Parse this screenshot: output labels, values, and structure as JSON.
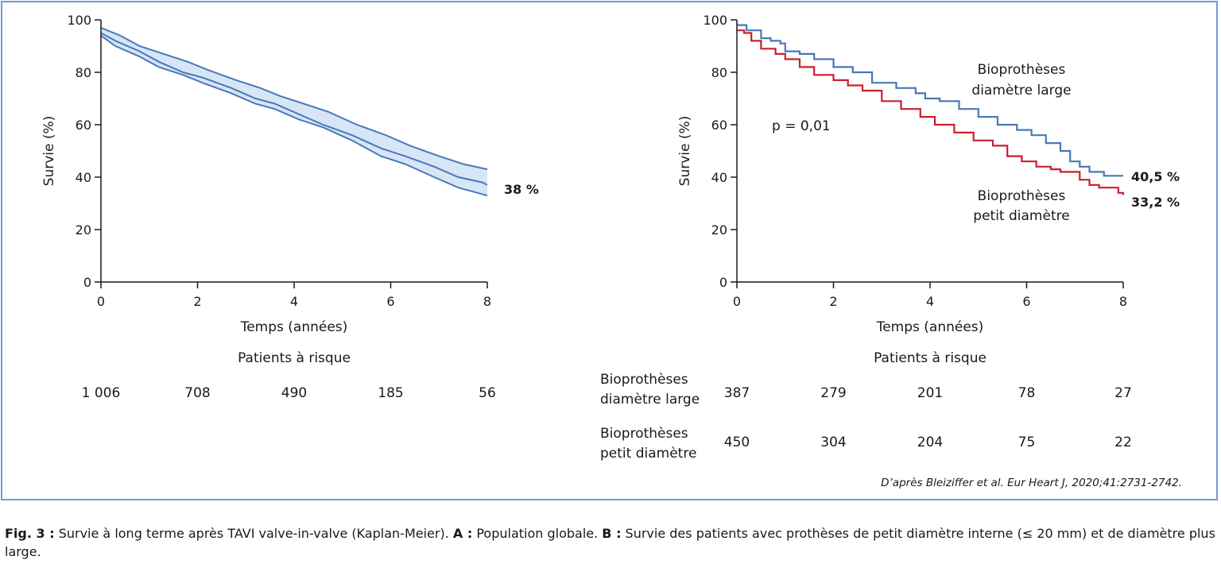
{
  "colors": {
    "frame": "#6f9bd1",
    "blue": "#4a77b6",
    "red": "#c8202e",
    "band_fill": "#d6e6f7"
  },
  "chart_data": [
    {
      "type": "line",
      "panel": "A",
      "title": "",
      "xlabel": "Temps (années)",
      "ylabel": "Survie (%)",
      "xlim": [
        0,
        8
      ],
      "ylim": [
        0,
        100
      ],
      "x_ticks": [
        "0",
        "2",
        "4",
        "6",
        "8"
      ],
      "y_ticks": [
        "0",
        "20",
        "40",
        "60",
        "80",
        "100"
      ],
      "series": [
        {
          "name": "",
          "role": "estimate",
          "x": [
            0,
            0.3,
            0.8,
            1.2,
            1.7,
            2.1,
            2.7,
            3.2,
            3.6,
            4.1,
            4.6,
            5.2,
            5.8,
            6.3,
            6.9,
            7.4,
            7.9,
            8
          ],
          "y": [
            95,
            92,
            88,
            84,
            80,
            78,
            74,
            70,
            68,
            64,
            60,
            56,
            51,
            48,
            44,
            40,
            38,
            37
          ]
        },
        {
          "name": "",
          "role": "upper",
          "x": [
            0,
            0.4,
            0.8,
            1.3,
            1.8,
            2.2,
            2.8,
            3.3,
            3.7,
            4.2,
            4.7,
            5.3,
            5.9,
            6.4,
            7.0,
            7.5,
            8
          ],
          "y": [
            97,
            94,
            90,
            87,
            84,
            81,
            77,
            74,
            71,
            68,
            65,
            60,
            56,
            52,
            48,
            45,
            43
          ]
        },
        {
          "name": "",
          "role": "lower",
          "x": [
            0,
            0.3,
            0.8,
            1.2,
            1.7,
            2.1,
            2.7,
            3.2,
            3.6,
            4.1,
            4.6,
            5.2,
            5.8,
            6.3,
            6.9,
            7.4,
            7.8,
            8
          ],
          "y": [
            94,
            90,
            86,
            82,
            79,
            76,
            72,
            68,
            66,
            62,
            59,
            54,
            48,
            45,
            40,
            36,
            34,
            33
          ]
        }
      ],
      "end_label": "38 %",
      "at_risk": {
        "title": "Patients à risque",
        "rows": [
          {
            "label": "",
            "values": [
              "1 006",
              "708",
              "490",
              "185",
              "56"
            ]
          }
        ]
      }
    },
    {
      "type": "line",
      "panel": "B",
      "title": "",
      "xlabel": "Temps (années)",
      "ylabel": "Survie (%)",
      "xlim": [
        0,
        8
      ],
      "ylim": [
        0,
        100
      ],
      "x_ticks": [
        "0",
        "2",
        "4",
        "6",
        "8"
      ],
      "y_ticks": [
        "0",
        "20",
        "40",
        "60",
        "80",
        "100"
      ],
      "annotation": "p = 0,01",
      "series": [
        {
          "name": "Bioprothèses diamètre large",
          "label_lines": [
            "Bioprothèses",
            "diamètre large"
          ],
          "end_label": "40,5 %",
          "color": "#4a77b6",
          "x": [
            0,
            0.2,
            0.5,
            0.7,
            0.9,
            1.0,
            1.3,
            1.6,
            2.0,
            2.4,
            2.8,
            3.3,
            3.7,
            3.9,
            4.2,
            4.6,
            5.0,
            5.4,
            5.8,
            6.1,
            6.4,
            6.7,
            6.9,
            7.1,
            7.3,
            7.6,
            8.0
          ],
          "y": [
            98,
            96,
            93,
            92,
            91,
            88,
            87,
            85,
            82,
            80,
            76,
            74,
            72,
            70,
            69,
            66,
            63,
            60,
            58,
            56,
            53,
            50,
            46,
            44,
            42,
            40.5,
            40.5
          ]
        },
        {
          "name": "Bioprothèses petit diamètre",
          "label_lines": [
            "Bioprothèses",
            "petit diamètre"
          ],
          "end_label": "33,2 %",
          "color": "#c8202e",
          "x": [
            0,
            0.15,
            0.3,
            0.5,
            0.8,
            1.0,
            1.3,
            1.6,
            2.0,
            2.3,
            2.6,
            3.0,
            3.4,
            3.8,
            4.1,
            4.5,
            4.9,
            5.3,
            5.6,
            5.9,
            6.2,
            6.5,
            6.7,
            7.0,
            7.1,
            7.3,
            7.5,
            7.9,
            8.0
          ],
          "y": [
            96,
            95,
            92,
            89,
            87,
            85,
            82,
            79,
            77,
            75,
            73,
            69,
            66,
            63,
            60,
            57,
            54,
            52,
            48,
            46,
            44,
            43,
            42,
            42,
            39,
            37,
            36,
            34,
            33.2
          ]
        }
      ],
      "at_risk": {
        "title": "Patients à risque",
        "rows": [
          {
            "label": "Bioprothèses diamètre large",
            "label_lines": [
              "Bioprothèses",
              "diamètre large"
            ],
            "values": [
              "387",
              "279",
              "201",
              "78",
              "27"
            ]
          },
          {
            "label": "Bioprothèses petit diamètre",
            "label_lines": [
              "Bioprothèses",
              "petit diamètre"
            ],
            "values": [
              "450",
              "304",
              "204",
              "75",
              "22"
            ]
          }
        ]
      }
    }
  ],
  "source": "D’après Bleiziffer et al. Eur Heart J, 2020;41:2731-2742.",
  "caption": {
    "fig_label": "Fig. 3 :",
    "text1": " Survie à long terme après TAVI valve-in-valve (Kaplan-Meier). ",
    "a_label": "A :",
    "text2": " Population globale. ",
    "b_label": "B :",
    "text3": " Survie des patients avec prothèses de petit diamètre interne (≤ 20 mm) et de diamètre plus large."
  }
}
